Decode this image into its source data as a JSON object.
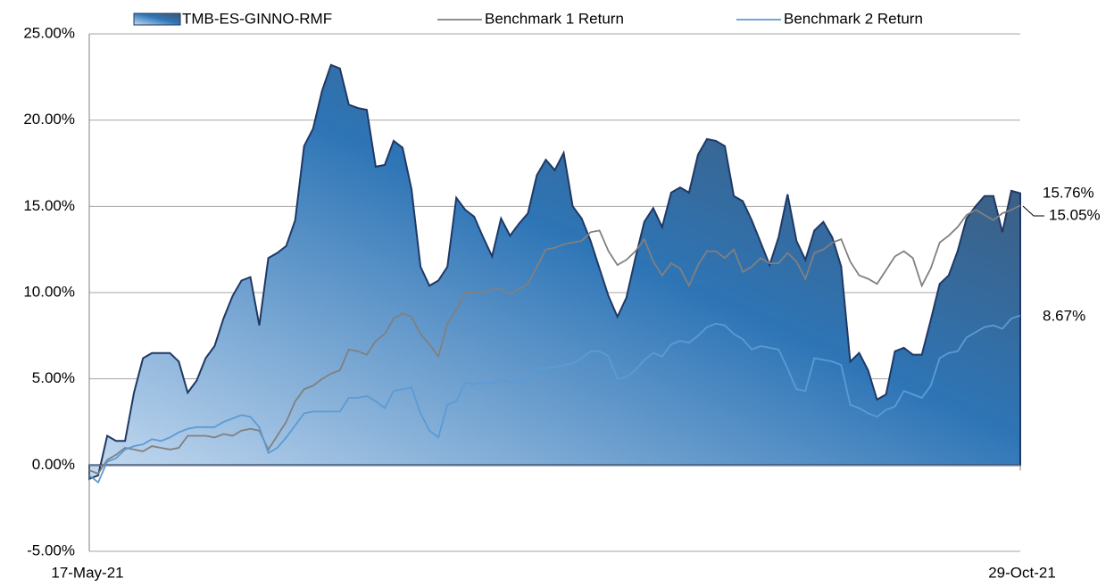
{
  "chart_data": {
    "type": "area-line",
    "categories": [
      "17-May-21",
      null,
      null,
      null,
      null,
      null,
      null,
      null,
      null,
      null,
      null,
      null,
      null,
      null,
      null,
      null,
      null,
      null,
      null,
      null,
      null,
      null,
      null,
      null,
      null,
      null,
      null,
      null,
      null,
      null,
      null,
      null,
      null,
      null,
      null,
      null,
      null,
      null,
      null,
      null,
      null,
      null,
      null,
      null,
      null,
      null,
      null,
      null,
      null,
      null,
      null,
      null,
      null,
      null,
      null,
      null,
      null,
      null,
      null,
      null,
      null,
      null,
      null,
      null,
      null,
      null,
      null,
      null,
      null,
      null,
      null,
      null,
      null,
      null,
      null,
      null,
      null,
      null,
      null,
      null,
      null,
      null,
      null,
      null,
      null,
      null,
      null,
      null,
      null,
      null,
      null,
      null,
      null,
      null,
      null,
      null,
      null,
      null,
      null,
      null,
      null,
      null,
      null,
      null,
      "29-Oct-21"
    ],
    "series": [
      {
        "name": "TMB-ES-GINNO-RMF",
        "color": "#1f3864",
        "end_label": "15.76%",
        "values": [
          -0.8,
          -0.6,
          1.7,
          1.4,
          1.4,
          4.2,
          6.2,
          6.5,
          6.5,
          6.5,
          6.0,
          4.2,
          4.9,
          6.2,
          6.9,
          8.5,
          9.8,
          10.7,
          10.9,
          8.1,
          12.0,
          12.3,
          12.7,
          14.2,
          18.5,
          19.5,
          21.7,
          23.2,
          23.0,
          20.9,
          20.7,
          20.6,
          17.3,
          17.4,
          18.8,
          18.4,
          16.0,
          11.5,
          10.4,
          10.7,
          11.5,
          15.5,
          14.8,
          14.4,
          13.2,
          12.1,
          14.3,
          13.3,
          14.0,
          14.6,
          16.8,
          17.7,
          17.1,
          18.1,
          15.0,
          14.3,
          13.0,
          11.4,
          9.8,
          8.6,
          9.7,
          12.0,
          14.1,
          14.9,
          13.8,
          15.8,
          16.1,
          15.8,
          18.0,
          18.9,
          18.8,
          18.5,
          15.6,
          15.3,
          14.2,
          12.9,
          11.6,
          13.2,
          15.7,
          13.0,
          11.9,
          13.6,
          14.1,
          13.2,
          11.5,
          6.0,
          6.5,
          5.5,
          3.8,
          4.1,
          6.6,
          6.8,
          6.4,
          6.4,
          8.4,
          10.5,
          11.0,
          12.4,
          14.3,
          15.0,
          15.6,
          15.6,
          13.5,
          15.9,
          15.76
        ]
      },
      {
        "name": "Benchmark 1 Return",
        "color": "#808080",
        "end_label": "15.05%",
        "values": [
          -0.3,
          -0.5,
          0.3,
          0.6,
          1.0,
          0.9,
          0.8,
          1.1,
          1.0,
          0.9,
          1.0,
          1.7,
          1.7,
          1.7,
          1.6,
          1.8,
          1.7,
          2.0,
          2.1,
          2.0,
          0.9,
          1.7,
          2.5,
          3.7,
          4.4,
          4.6,
          5.0,
          5.3,
          5.5,
          6.7,
          6.6,
          6.4,
          7.2,
          7.6,
          8.5,
          8.8,
          8.6,
          7.6,
          7.0,
          6.3,
          8.2,
          9.0,
          10.0,
          10.0,
          10.0,
          10.2,
          10.2,
          9.9,
          10.2,
          10.5,
          11.5,
          12.5,
          12.6,
          12.8,
          12.9,
          13.0,
          13.5,
          13.6,
          12.4,
          11.6,
          11.9,
          12.4,
          13.1,
          11.8,
          11.0,
          11.7,
          11.4,
          10.4,
          11.6,
          12.4,
          12.4,
          12.0,
          12.5,
          11.2,
          11.5,
          12.0,
          11.7,
          11.7,
          12.3,
          11.8,
          10.8,
          12.3,
          12.5,
          12.9,
          13.1,
          11.8,
          11.0,
          10.8,
          10.5,
          11.3,
          12.1,
          12.4,
          12.0,
          10.4,
          11.4,
          12.9,
          13.3,
          13.8,
          14.5,
          14.8,
          14.5,
          14.2,
          14.6,
          14.8,
          15.05
        ]
      },
      {
        "name": "Benchmark 2 Return",
        "color": "#5b9bd5",
        "end_label": "8.67%",
        "values": [
          -0.6,
          -1.0,
          0.2,
          0.4,
          0.9,
          1.1,
          1.2,
          1.5,
          1.4,
          1.6,
          1.9,
          2.1,
          2.2,
          2.2,
          2.2,
          2.5,
          2.7,
          2.9,
          2.8,
          2.2,
          0.7,
          1.0,
          1.6,
          2.3,
          3.0,
          3.1,
          3.1,
          3.1,
          3.1,
          3.9,
          3.9,
          4.0,
          3.7,
          3.3,
          4.3,
          4.4,
          4.5,
          3.0,
          2.0,
          1.6,
          3.5,
          3.7,
          4.8,
          4.7,
          4.8,
          4.7,
          5.0,
          4.8,
          4.8,
          4.9,
          5.6,
          5.6,
          5.7,
          5.8,
          5.9,
          6.2,
          6.6,
          6.6,
          6.3,
          5.0,
          5.1,
          5.5,
          6.1,
          6.5,
          6.3,
          7.0,
          7.2,
          7.1,
          7.5,
          8.0,
          8.2,
          8.1,
          7.6,
          7.3,
          6.7,
          6.9,
          6.8,
          6.7,
          5.6,
          4.4,
          4.3,
          6.2,
          6.1,
          6.0,
          5.8,
          3.5,
          3.3,
          3.0,
          2.8,
          3.2,
          3.4,
          4.3,
          4.1,
          3.9,
          4.6,
          6.2,
          6.5,
          6.6,
          7.4,
          7.7,
          8.0,
          8.1,
          7.9,
          8.5,
          8.67
        ]
      }
    ],
    "ylim": [
      -5,
      25
    ],
    "yticks": [
      {
        "value": -5,
        "label": "-5.00%"
      },
      {
        "value": 0,
        "label": "0.00%"
      },
      {
        "value": 5,
        "label": "5.00%"
      },
      {
        "value": 10,
        "label": "10.00%"
      },
      {
        "value": 15,
        "label": "15.00%"
      },
      {
        "value": 20,
        "label": "20.00%"
      },
      {
        "value": 25,
        "label": "25.00%"
      }
    ],
    "grid": true,
    "legend": "top"
  }
}
